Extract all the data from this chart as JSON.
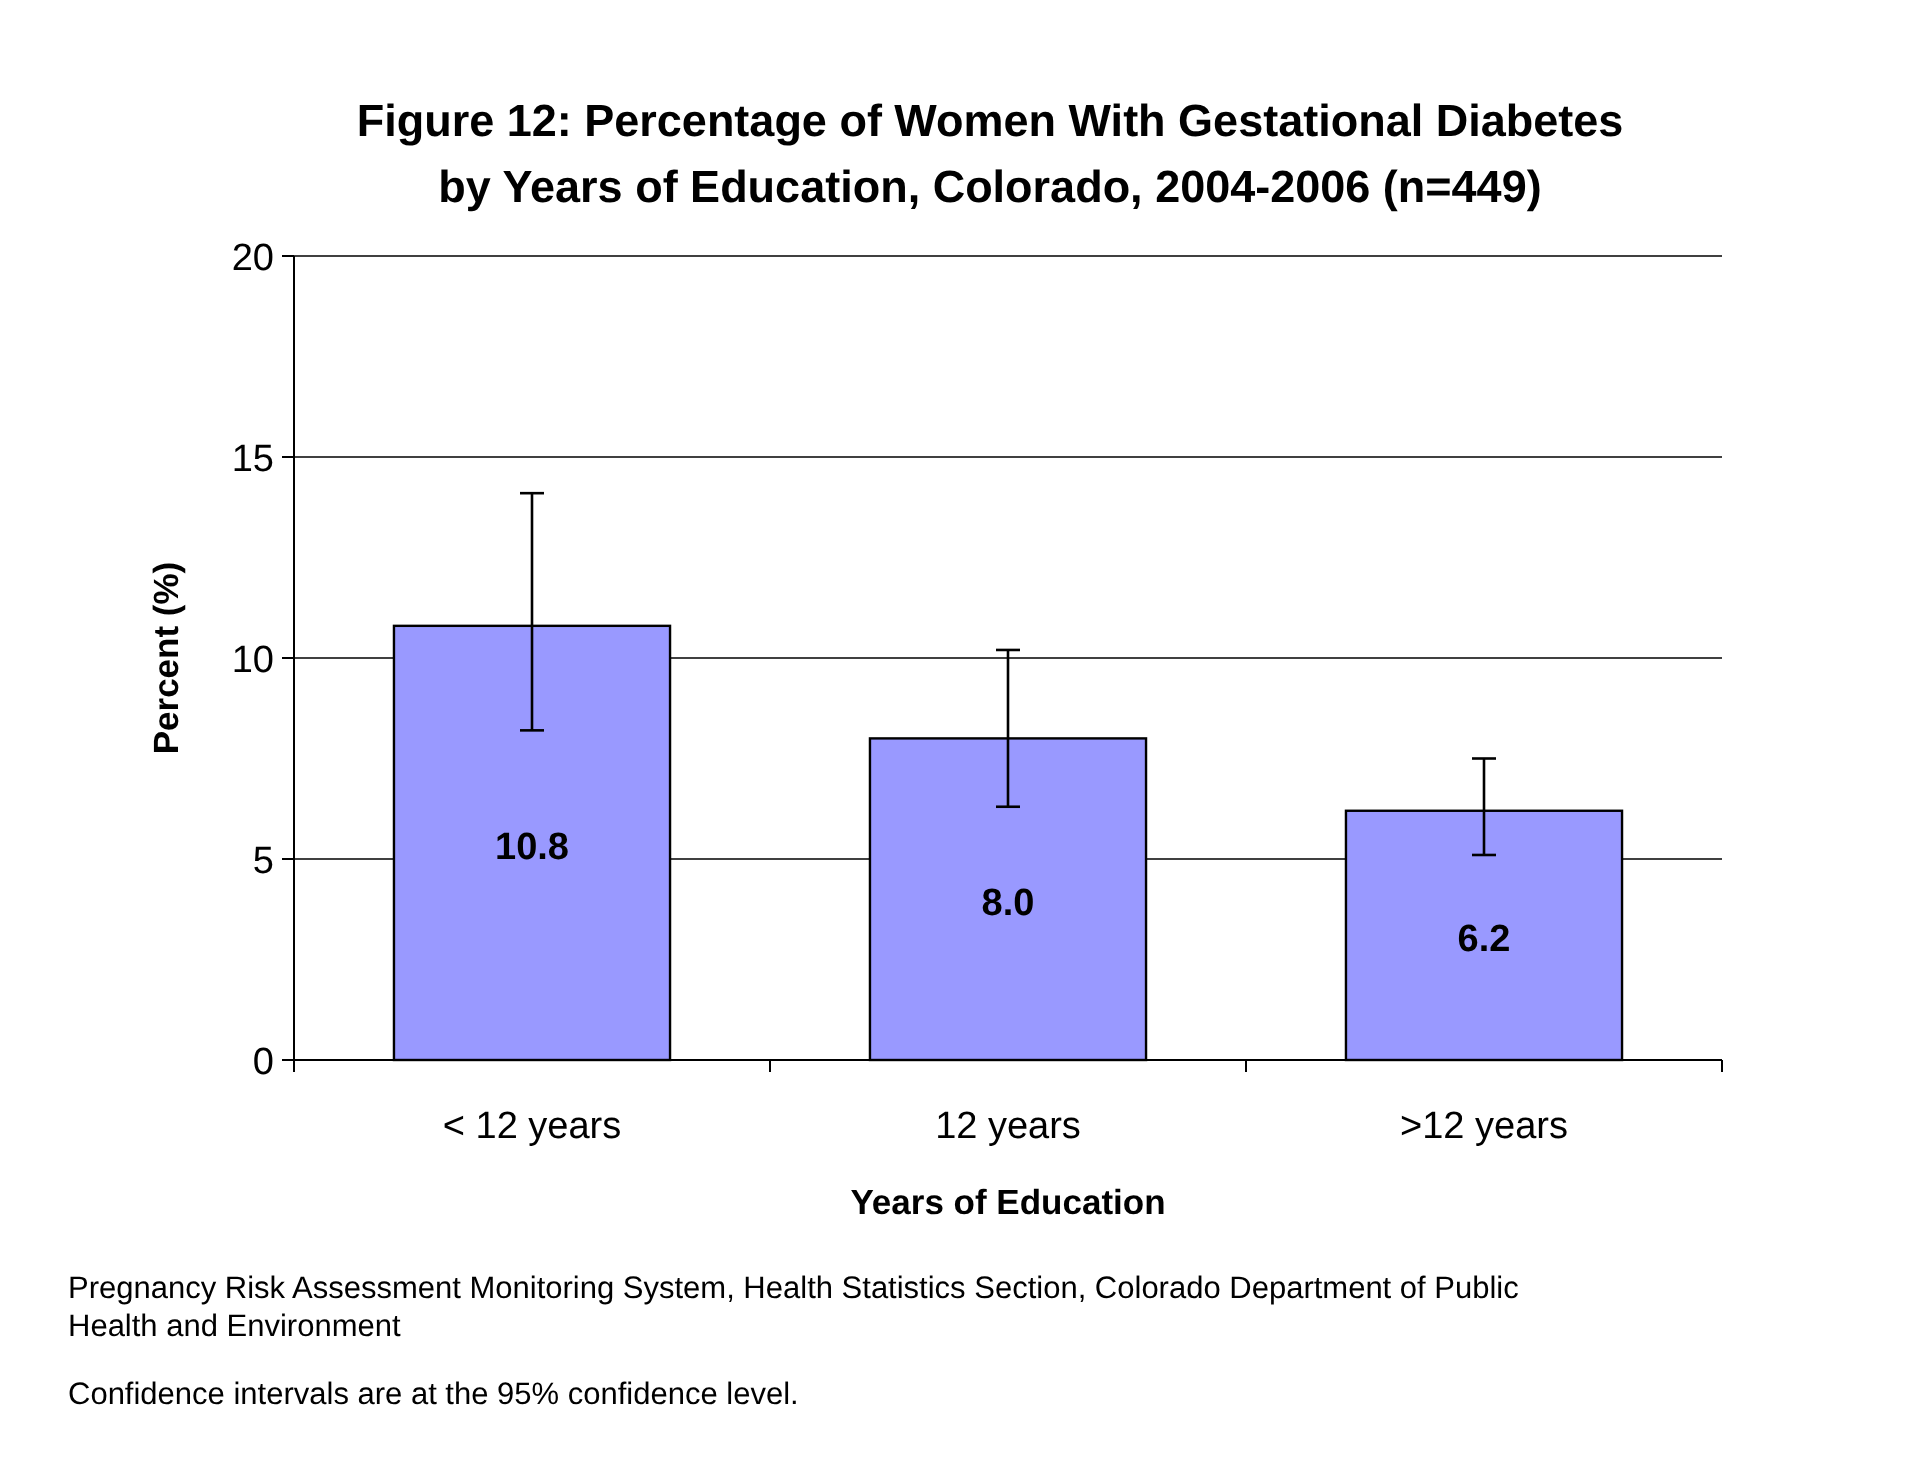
{
  "chart_data": {
    "type": "bar",
    "title": "Figure 12: Percentage of Women With Gestational Diabetes\nby Years of Education, Colorado, 2004-2006 (n=449)",
    "xlabel": "Years of Education",
    "ylabel": "Percent (%)",
    "categories": [
      "< 12 years",
      "12 years",
      ">12 years"
    ],
    "values": [
      10.8,
      8.0,
      6.2
    ],
    "color": "#9999ff",
    "errors": [
      [
        8.2,
        14.1
      ],
      [
        6.3,
        10.2
      ],
      [
        5.1,
        7.5
      ]
    ],
    "value_labels": [
      "10.8",
      "8.0",
      "6.2"
    ],
    "ylim": [
      0,
      20
    ],
    "yticks": [
      0,
      5,
      10,
      15,
      20
    ],
    "grid": "y",
    "annotations": [
      "Pregnancy Risk Assessment Monitoring System, Health Statistics Section, Colorado Department of Public\nHealth and Environment",
      "Confidence intervals are at the 95% confidence level."
    ]
  }
}
